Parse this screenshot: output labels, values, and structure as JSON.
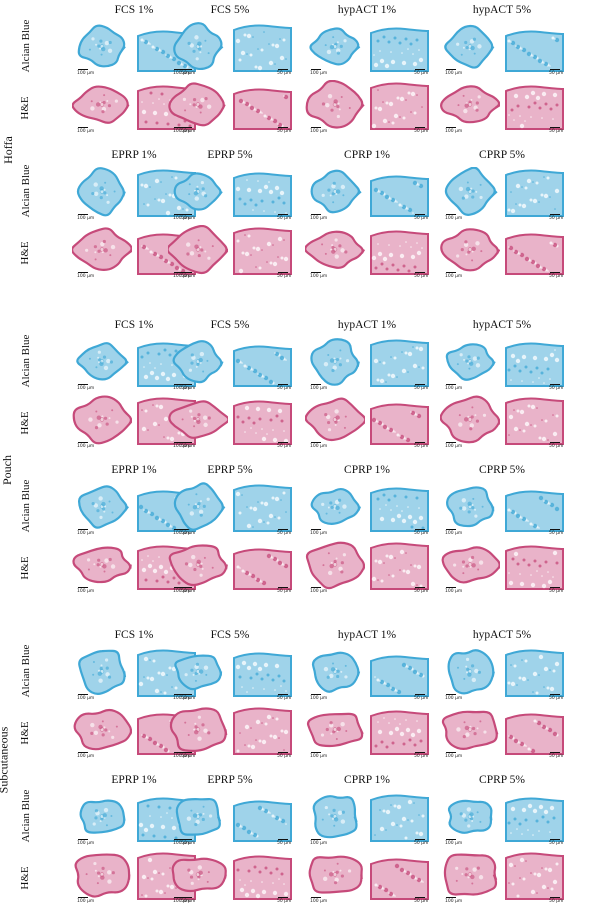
{
  "groups": [
    {
      "name": "Hoffa"
    },
    {
      "name": "Pouch"
    },
    {
      "name": "Subcutaneous"
    }
  ],
  "row_labels": {
    "alcian": "Alcian Blue",
    "he": "H&E"
  },
  "block_columns": [
    [
      "FCS 1%",
      "FCS 5%",
      "hypACT 1%",
      "hypACT 5%"
    ],
    [
      "EPRP 1%",
      "EPRP 5%",
      "CPRP 1%",
      "CPRP 5%"
    ]
  ],
  "scale_bars": {
    "low": "100 μm",
    "high": "50 μm"
  },
  "colors": {
    "alcian": "#3fa8d6",
    "alcian_light": "#9fd3ea",
    "he": "#c64a7a",
    "he_light": "#e9b3c9"
  }
}
